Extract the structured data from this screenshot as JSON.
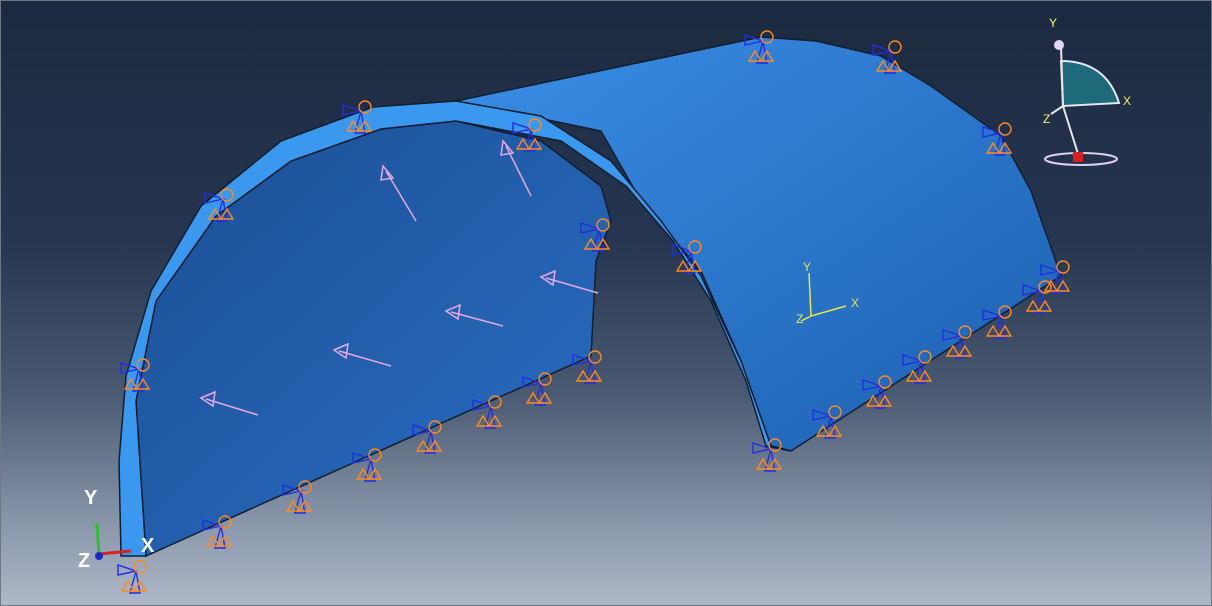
{
  "window": {
    "title": ""
  },
  "model_axes": {
    "x_label": "X",
    "y_label": "Y",
    "z_label": "Z"
  },
  "global_triad": {
    "x_label": "X",
    "y_label": "Y",
    "z_label": "Z"
  },
  "view_manipulator": {
    "x_label": "X",
    "y_label": "Y",
    "z_label": "Z"
  },
  "colors": {
    "part_face_outer": "#2a7ad6",
    "part_face_inner": "#1d5ca8",
    "part_edge": "#3a95ea",
    "bc_orange": "#ff8a1e",
    "bc_blue": "#1f2ee6",
    "load_pink": "#e6a8e6",
    "axis_yellow": "#e6e64a"
  },
  "icons": [
    "boundary-condition-symbol",
    "pressure-load-arrow",
    "view-cube-compass"
  ]
}
